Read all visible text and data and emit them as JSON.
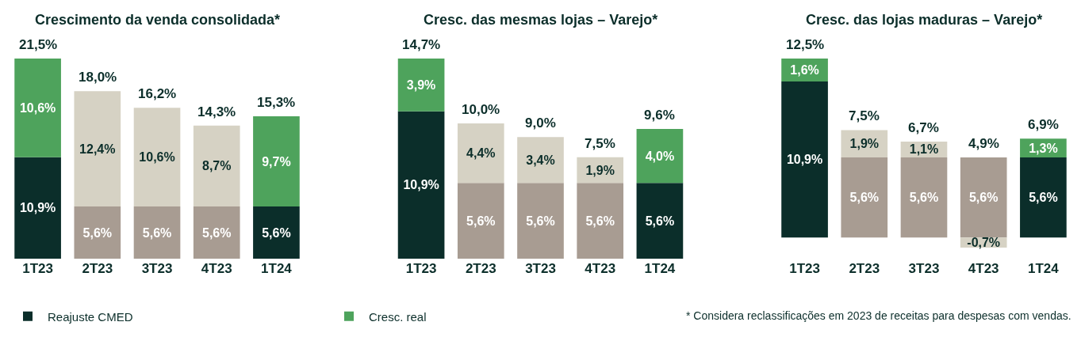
{
  "chart_data": [
    {
      "type": "bar",
      "title": "Crescimento da venda consolidada*",
      "stacked": true,
      "legend": "bottom",
      "categories": [
        "1T23",
        "2T23",
        "3T23",
        "4T23",
        "1T24"
      ],
      "series": [
        {
          "name": "Reajuste CMED",
          "colors": [
            "#0b2e2a",
            "#a89c92",
            "#a89c92",
            "#a89c92",
            "#0b2e2a"
          ],
          "values": [
            10.9,
            5.6,
            5.6,
            5.6,
            5.6
          ],
          "value_labels": [
            "10,9%",
            "5,6%",
            "5,6%",
            "5,6%",
            "5,6%"
          ]
        },
        {
          "name": "Cresc. real",
          "colors": [
            "#4ea35c",
            "#d6d2c4",
            "#d6d2c4",
            "#d6d2c4",
            "#4ea35c"
          ],
          "values": [
            10.6,
            12.4,
            10.6,
            8.7,
            9.7
          ],
          "value_labels": [
            "10,6%",
            "12,4%",
            "10,6%",
            "8,7%",
            "9,7%"
          ]
        }
      ],
      "totals": [
        "21,5%",
        "18,0%",
        "16,2%",
        "14,3%",
        "15,3%"
      ]
    },
    {
      "type": "bar",
      "title": "Cresc. das mesmas lojas – Varejo*",
      "stacked": true,
      "legend": "bottom",
      "categories": [
        "1T23",
        "2T23",
        "3T23",
        "4T23",
        "1T24"
      ],
      "series": [
        {
          "name": "Reajuste CMED",
          "colors": [
            "#0b2e2a",
            "#a89c92",
            "#a89c92",
            "#a89c92",
            "#0b2e2a"
          ],
          "values": [
            10.9,
            5.6,
            5.6,
            5.6,
            5.6
          ],
          "value_labels": [
            "10,9%",
            "5,6%",
            "5,6%",
            "5,6%",
            "5,6%"
          ]
        },
        {
          "name": "Cresc. real",
          "colors": [
            "#4ea35c",
            "#d6d2c4",
            "#d6d2c4",
            "#d6d2c4",
            "#4ea35c"
          ],
          "values": [
            3.9,
            4.4,
            3.4,
            1.9,
            4.0
          ],
          "value_labels": [
            "3,9%",
            "4,4%",
            "3,4%",
            "1,9%",
            "4,0%"
          ]
        }
      ],
      "totals": [
        "14,7%",
        "10,0%",
        "9,0%",
        "7,5%",
        "9,6%"
      ]
    },
    {
      "type": "bar",
      "title": "Cresc. das lojas maduras – Varejo*",
      "stacked": true,
      "legend": "bottom",
      "categories": [
        "1T23",
        "2T23",
        "3T23",
        "4T23",
        "1T24"
      ],
      "series": [
        {
          "name": "Reajuste CMED",
          "colors": [
            "#0b2e2a",
            "#a89c92",
            "#a89c92",
            "#a89c92",
            "#0b2e2a"
          ],
          "values": [
            10.9,
            5.6,
            5.6,
            5.6,
            5.6
          ],
          "value_labels": [
            "10,9%",
            "5,6%",
            "5,6%",
            "5,6%",
            "5,6%"
          ]
        },
        {
          "name": "Cresc. real",
          "colors": [
            "#4ea35c",
            "#d6d2c4",
            "#d6d2c4",
            "#d6d2c4",
            "#4ea35c"
          ],
          "values": [
            1.6,
            1.9,
            1.1,
            -0.7,
            1.3
          ],
          "value_labels": [
            "1,6%",
            "1,9%",
            "1,1%",
            "-0,7%",
            "1,3%"
          ]
        }
      ],
      "totals": [
        "12,5%",
        "7,5%",
        "6,7%",
        "4,9%",
        "6,9%"
      ],
      "annotations": [
        "* Considera reclassificações em 2023 de receitas para despesas com vendas."
      ]
    }
  ]
}
